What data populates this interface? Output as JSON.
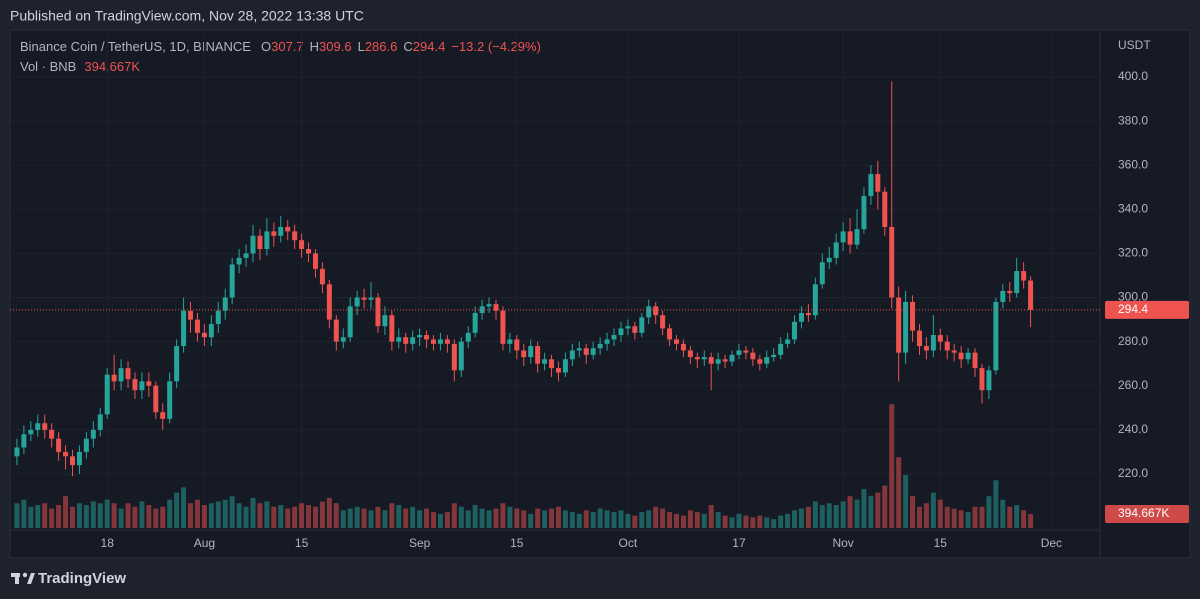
{
  "header": "Published on TradingView.com, Nov 28, 2022 13:38 UTC",
  "footer": "TradingView",
  "chart_data": {
    "type": "candlestick",
    "title": "Binance Coin / TetherUS, 1D, BINANCE",
    "legend_keys": [
      "O",
      "H",
      "L",
      "C"
    ],
    "change_label": "−13.2 (−4.29%)",
    "unit_label": "USDT",
    "up_color": "#26a69a",
    "down_color": "#ef5350",
    "grid": true,
    "xlim": [
      "2022-07-04",
      "2022-12-08"
    ],
    "xticks": [
      {
        "value": "2022-07-18",
        "label": "18"
      },
      {
        "value": "2022-08-01",
        "label": "Aug"
      },
      {
        "value": "2022-08-15",
        "label": "15"
      },
      {
        "value": "2022-09-01",
        "label": "Sep"
      },
      {
        "value": "2022-09-15",
        "label": "15"
      },
      {
        "value": "2022-10-01",
        "label": "Oct"
      },
      {
        "value": "2022-10-17",
        "label": "17"
      },
      {
        "value": "2022-11-01",
        "label": "Nov"
      },
      {
        "value": "2022-11-15",
        "label": "15"
      },
      {
        "value": "2022-12-01",
        "label": "Dec"
      }
    ],
    "ylim": [
      195.5,
      419.95
    ],
    "yticks": [
      {
        "value": 220,
        "label": "220.0"
      },
      {
        "value": 240,
        "label": "240.0"
      },
      {
        "value": 260,
        "label": "260.0"
      },
      {
        "value": 280,
        "label": "280.0"
      },
      {
        "value": 300,
        "label": "300.0"
      },
      {
        "value": 320,
        "label": "320.0"
      },
      {
        "value": 340,
        "label": "340.0"
      },
      {
        "value": 360,
        "label": "360.0"
      },
      {
        "value": 380,
        "label": "380.0"
      },
      {
        "value": 400,
        "label": "400.0"
      }
    ],
    "y2lim": [
      0,
      14000000
    ],
    "x": [
      "2022-07-05",
      "2022-07-06",
      "2022-07-07",
      "2022-07-08",
      "2022-07-09",
      "2022-07-10",
      "2022-07-11",
      "2022-07-12",
      "2022-07-13",
      "2022-07-14",
      "2022-07-15",
      "2022-07-16",
      "2022-07-17",
      "2022-07-18",
      "2022-07-19",
      "2022-07-20",
      "2022-07-21",
      "2022-07-22",
      "2022-07-23",
      "2022-07-24",
      "2022-07-25",
      "2022-07-26",
      "2022-07-27",
      "2022-07-28",
      "2022-07-29",
      "2022-07-30",
      "2022-07-31",
      "2022-08-01",
      "2022-08-02",
      "2022-08-03",
      "2022-08-04",
      "2022-08-05",
      "2022-08-06",
      "2022-08-07",
      "2022-08-08",
      "2022-08-09",
      "2022-08-10",
      "2022-08-11",
      "2022-08-12",
      "2022-08-13",
      "2022-08-14",
      "2022-08-15",
      "2022-08-16",
      "2022-08-17",
      "2022-08-18",
      "2022-08-19",
      "2022-08-20",
      "2022-08-21",
      "2022-08-22",
      "2022-08-23",
      "2022-08-24",
      "2022-08-25",
      "2022-08-26",
      "2022-08-27",
      "2022-08-28",
      "2022-08-29",
      "2022-08-30",
      "2022-08-31",
      "2022-09-01",
      "2022-09-02",
      "2022-09-03",
      "2022-09-04",
      "2022-09-05",
      "2022-09-06",
      "2022-09-07",
      "2022-09-08",
      "2022-09-09",
      "2022-09-10",
      "2022-09-11",
      "2022-09-12",
      "2022-09-13",
      "2022-09-14",
      "2022-09-15",
      "2022-09-16",
      "2022-09-17",
      "2022-09-18",
      "2022-09-19",
      "2022-09-20",
      "2022-09-21",
      "2022-09-22",
      "2022-09-23",
      "2022-09-24",
      "2022-09-25",
      "2022-09-26",
      "2022-09-27",
      "2022-09-28",
      "2022-09-29",
      "2022-09-30",
      "2022-10-01",
      "2022-10-02",
      "2022-10-03",
      "2022-10-04",
      "2022-10-05",
      "2022-10-06",
      "2022-10-07",
      "2022-10-08",
      "2022-10-09",
      "2022-10-10",
      "2022-10-11",
      "2022-10-12",
      "2022-10-13",
      "2022-10-14",
      "2022-10-15",
      "2022-10-16",
      "2022-10-17",
      "2022-10-18",
      "2022-10-19",
      "2022-10-20",
      "2022-10-21",
      "2022-10-22",
      "2022-10-23",
      "2022-10-24",
      "2022-10-25",
      "2022-10-26",
      "2022-10-27",
      "2022-10-28",
      "2022-10-29",
      "2022-10-30",
      "2022-10-31",
      "2022-11-01",
      "2022-11-02",
      "2022-11-03",
      "2022-11-04",
      "2022-11-05",
      "2022-11-06",
      "2022-11-07",
      "2022-11-08",
      "2022-11-09",
      "2022-11-10",
      "2022-11-11",
      "2022-11-12",
      "2022-11-13",
      "2022-11-14",
      "2022-11-15",
      "2022-11-16",
      "2022-11-17",
      "2022-11-18",
      "2022-11-19",
      "2022-11-20",
      "2022-11-21",
      "2022-11-22",
      "2022-11-23",
      "2022-11-24",
      "2022-11-25",
      "2022-11-26",
      "2022-11-27",
      "2022-11-28"
    ],
    "open": [
      228,
      232,
      238,
      240,
      243,
      240,
      236,
      230,
      228,
      224,
      230,
      236,
      240,
      247,
      265,
      262,
      268,
      263,
      258,
      262,
      260,
      248,
      245,
      262,
      278,
      294,
      290,
      284,
      282,
      288,
      294,
      300,
      315,
      318,
      320,
      328,
      322,
      330,
      328,
      332,
      330,
      326,
      322,
      320,
      313,
      306,
      290,
      280,
      282,
      296,
      300,
      299,
      300,
      287,
      292,
      280,
      282,
      279,
      282,
      283,
      281,
      279,
      281,
      279,
      267,
      280,
      284,
      293,
      296,
      297,
      294,
      279,
      281,
      276,
      273,
      278,
      270,
      272,
      268,
      266,
      272,
      276,
      277,
      274,
      277,
      279,
      281,
      283,
      286,
      287,
      284,
      291,
      296,
      292,
      286,
      281,
      279,
      276,
      273,
      272,
      273,
      270,
      272,
      271,
      274,
      276,
      275,
      272,
      270,
      273,
      274,
      279,
      281,
      289,
      293,
      292,
      306,
      316,
      318,
      325,
      330,
      324,
      331,
      346,
      356,
      348,
      332,
      300,
      275,
      298,
      285,
      278,
      276,
      283,
      280,
      276,
      275,
      272,
      275,
      268,
      258,
      267,
      298,
      303,
      302,
      312,
      307.7
    ],
    "high": [
      236,
      242,
      244,
      247,
      247,
      243,
      239,
      233,
      231,
      233,
      239,
      244,
      250,
      268,
      274,
      272,
      271,
      266,
      266,
      266,
      262,
      252,
      266,
      281,
      300,
      298,
      293,
      288,
      292,
      298,
      304,
      318,
      322,
      324,
      333,
      331,
      336,
      334,
      337,
      335,
      333,
      329,
      325,
      322,
      316,
      308,
      292,
      286,
      300,
      303,
      304,
      307,
      302,
      296,
      294,
      286,
      284,
      285,
      286,
      285,
      283,
      284,
      283,
      281,
      282,
      287,
      296,
      299,
      300,
      299,
      296,
      284,
      283,
      279,
      281,
      280,
      275,
      274,
      271,
      275,
      279,
      280,
      279,
      280,
      282,
      284,
      286,
      289,
      290,
      289,
      293,
      299,
      298,
      294,
      288,
      283,
      281,
      278,
      275,
      276,
      275,
      275,
      274,
      276,
      279,
      278,
      277,
      274,
      276,
      277,
      282,
      284,
      292,
      296,
      297,
      309,
      320,
      323,
      329,
      334,
      336,
      340,
      350,
      360,
      362,
      350,
      398,
      305,
      303,
      301,
      288,
      282,
      292,
      286,
      283,
      279,
      278,
      277,
      277,
      270,
      269,
      300,
      306,
      307,
      318,
      316,
      309.6
    ],
    "low": [
      224,
      229,
      235,
      237,
      236,
      232,
      226,
      222,
      219,
      220,
      227,
      232,
      237,
      245,
      258,
      258,
      259,
      254,
      254,
      255,
      245,
      240,
      243,
      259,
      275,
      284,
      280,
      278,
      278,
      284,
      290,
      297,
      311,
      314,
      316,
      317,
      319,
      323,
      325,
      326,
      322,
      318,
      316,
      309,
      302,
      286,
      276,
      277,
      280,
      292,
      295,
      295,
      284,
      283,
      276,
      277,
      275,
      276,
      278,
      277,
      276,
      276,
      275,
      262,
      264,
      277,
      282,
      290,
      293,
      290,
      276,
      275,
      272,
      269,
      270,
      266,
      267,
      264,
      262,
      264,
      269,
      273,
      270,
      272,
      274,
      276,
      278,
      280,
      283,
      281,
      282,
      288,
      288,
      283,
      278,
      276,
      273,
      270,
      268,
      269,
      258,
      267,
      268,
      269,
      272,
      272,
      269,
      267,
      268,
      271,
      272,
      277,
      279,
      286,
      289,
      290,
      304,
      313,
      315,
      321,
      320,
      322,
      329,
      342,
      340,
      328,
      295,
      262,
      270,
      280,
      274,
      272,
      273,
      276,
      272,
      271,
      268,
      270,
      264,
      252,
      254,
      265,
      295,
      298,
      300,
      304,
      286.6
    ],
    "close": [
      232,
      238,
      240,
      243,
      240,
      236,
      230,
      228,
      224,
      230,
      236,
      240,
      247,
      265,
      262,
      268,
      263,
      258,
      262,
      260,
      248,
      245,
      262,
      278,
      294,
      290,
      284,
      282,
      288,
      294,
      300,
      315,
      318,
      320,
      328,
      322,
      330,
      328,
      332,
      330,
      326,
      322,
      320,
      313,
      306,
      290,
      280,
      282,
      296,
      300,
      299,
      300,
      287,
      292,
      280,
      282,
      279,
      282,
      283,
      281,
      279,
      281,
      279,
      267,
      280,
      284,
      293,
      296,
      297,
      294,
      279,
      281,
      276,
      273,
      278,
      270,
      272,
      268,
      266,
      272,
      276,
      277,
      274,
      277,
      279,
      281,
      283,
      286,
      287,
      284,
      291,
      296,
      292,
      286,
      281,
      279,
      276,
      273,
      272,
      273,
      270,
      272,
      271,
      274,
      276,
      275,
      272,
      270,
      273,
      274,
      279,
      281,
      289,
      293,
      292,
      306,
      316,
      318,
      325,
      330,
      324,
      331,
      346,
      356,
      348,
      332,
      300,
      275,
      298,
      285,
      278,
      276,
      283,
      280,
      276,
      275,
      272,
      275,
      268,
      258,
      267,
      298,
      303,
      302,
      312,
      307.7,
      294.4
    ],
    "volume": {
      "name": "Vol · BNB",
      "last_label": "394.667K",
      "values": [
        700000,
        800000,
        600000,
        650000,
        700000,
        550000,
        650000,
        900000,
        600000,
        700000,
        650000,
        750000,
        700000,
        800000,
        700000,
        550000,
        700000,
        600000,
        750000,
        650000,
        550000,
        600000,
        800000,
        1000000,
        1150000,
        700000,
        800000,
        650000,
        700000,
        750000,
        800000,
        900000,
        700000,
        600000,
        850000,
        700000,
        750000,
        600000,
        650000,
        550000,
        600000,
        700000,
        650000,
        600000,
        750000,
        850000,
        700000,
        500000,
        550000,
        600000,
        550000,
        500000,
        600000,
        500000,
        700000,
        650000,
        550000,
        600000,
        500000,
        550000,
        450000,
        400000,
        450000,
        700000,
        600000,
        500000,
        650000,
        550000,
        500000,
        550000,
        700000,
        600000,
        550000,
        500000,
        400000,
        550000,
        500000,
        550000,
        600000,
        500000,
        450000,
        400000,
        500000,
        450000,
        550000,
        500000,
        450000,
        500000,
        400000,
        350000,
        450000,
        500000,
        600000,
        550000,
        450000,
        400000,
        350000,
        500000,
        450000,
        400000,
        650000,
        450000,
        350000,
        300000,
        400000,
        350000,
        300000,
        350000,
        300000,
        250000,
        350000,
        400000,
        500000,
        550000,
        600000,
        750000,
        650000,
        700000,
        650000,
        750000,
        900000,
        800000,
        1100000,
        900000,
        1000000,
        1200000,
        3500000,
        2000000,
        1500000,
        900000,
        600000,
        700000,
        1000000,
        800000,
        600000,
        550000,
        500000,
        450000,
        600000,
        600000,
        900000,
        1350000,
        800000,
        600000,
        650000,
        500000,
        394667
      ]
    }
  }
}
